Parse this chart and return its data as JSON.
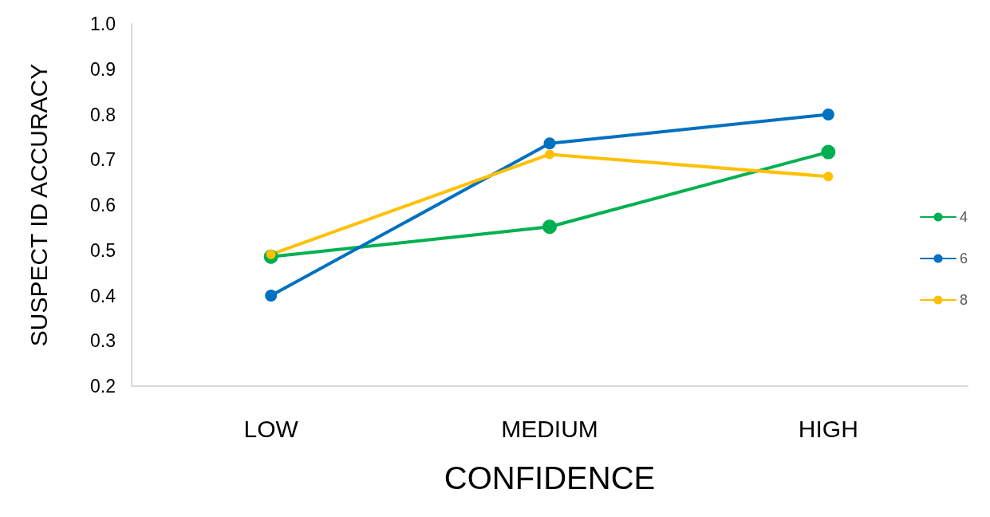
{
  "chart_data": {
    "type": "line",
    "xlabel": "CONFIDENCE",
    "ylabel": "SUSPECT ID ACCURACY",
    "categories": [
      "LOW",
      "MEDIUM",
      "HIGH"
    ],
    "series": [
      {
        "name": "4",
        "color": "#00b050",
        "values": [
          0.486,
          0.552,
          0.717
        ]
      },
      {
        "name": "6",
        "color": "#0070c0",
        "values": [
          0.4,
          0.736,
          0.8
        ]
      },
      {
        "name": "8",
        "color": "#ffc000",
        "values": [
          0.491,
          0.712,
          0.663
        ]
      }
    ],
    "ylim": [
      0.2,
      1.0
    ],
    "yticks": [
      0.2,
      0.3,
      0.4,
      0.5,
      0.6,
      0.7,
      0.8,
      0.9,
      {
        "value": 1.0,
        "label": "1.0"
      }
    ],
    "grid": false,
    "legend": "right",
    "marker": "circle",
    "line_style": "solid"
  }
}
